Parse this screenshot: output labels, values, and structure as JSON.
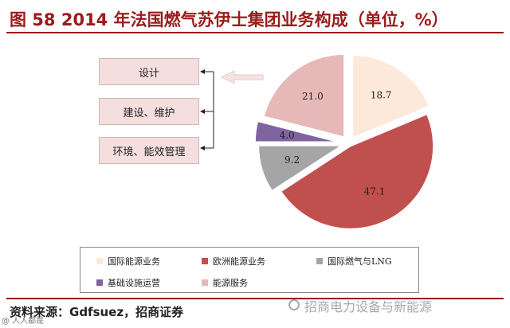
{
  "header": {
    "title": "图 58   2014 年法国燃气苏伊士集团业务构成（单位，%）"
  },
  "side_boxes": [
    "设计",
    "建设、维护",
    "环境、能效管理"
  ],
  "chart_data": {
    "type": "pie",
    "title": "",
    "slices": [
      {
        "name": "国际能源业务",
        "value": 18.7,
        "label": "18.7",
        "color": "#fce9d9"
      },
      {
        "name": "欧洲能源业务",
        "value": 47.1,
        "label": "47.1",
        "color": "#c0504d"
      },
      {
        "name": "国际燃气与LNG",
        "value": 9.2,
        "label": "9.2",
        "color": "#a5a5a5"
      },
      {
        "name": "基础设施运营",
        "value": 4.0,
        "label": "4.0",
        "color": "#8064a2"
      },
      {
        "name": "能源服务",
        "value": 21.0,
        "label": "21.0",
        "color": "#e6b9b8"
      }
    ],
    "legend": {
      "placement": "bottom",
      "items": [
        "国际能源业务",
        "欧洲能源业务",
        "国际燃气与LNG",
        "基础设施运营",
        "能源服务"
      ]
    }
  },
  "footer": {
    "source": "资料来源：Gdfsuez，招商证券",
    "watermark": "招商电力设备与新能源",
    "corner_mark": "@ 人人都是"
  }
}
